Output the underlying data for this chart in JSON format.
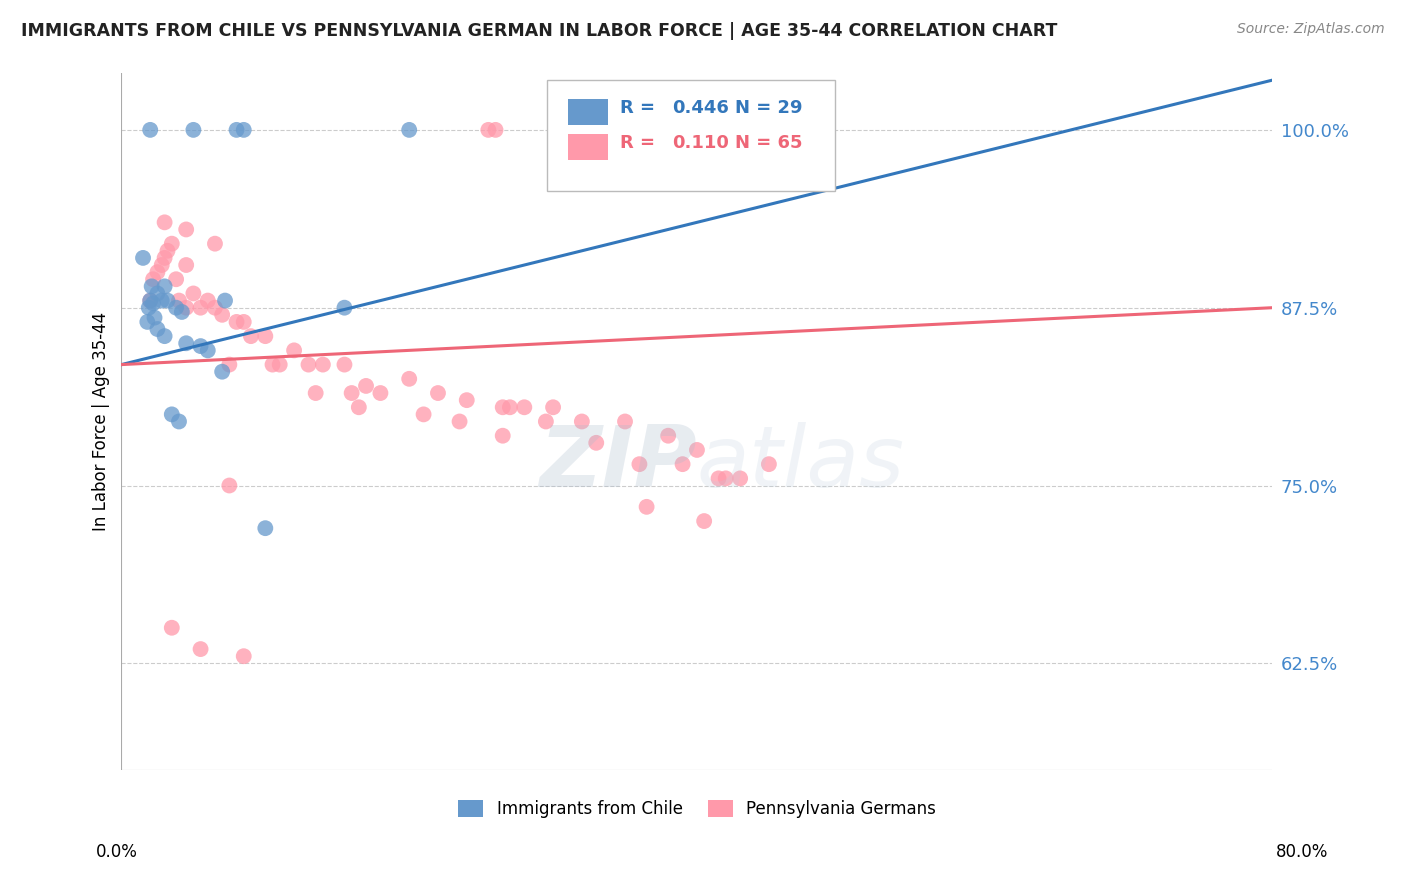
{
  "title": "IMMIGRANTS FROM CHILE VS PENNSYLVANIA GERMAN IN LABOR FORCE | AGE 35-44 CORRELATION CHART",
  "source": "Source: ZipAtlas.com",
  "ylabel": "In Labor Force | Age 35-44",
  "yticks": [
    62.5,
    75.0,
    87.5,
    100.0
  ],
  "ytick_labels": [
    "62.5%",
    "75.0%",
    "87.5%",
    "100.0%"
  ],
  "xlim": [
    0.0,
    80.0
  ],
  "ylim": [
    55.0,
    104.0
  ],
  "blue_color": "#6699CC",
  "pink_color": "#FF99AA",
  "blue_line_color": "#3377BB",
  "pink_line_color": "#EE6677",
  "legend_R_blue": "0.446",
  "legend_N_blue": "29",
  "legend_R_pink": "0.110",
  "legend_N_pink": "65",
  "blue_line_x0": 0.0,
  "blue_line_y0": 83.5,
  "blue_line_x1": 80.0,
  "blue_line_y1": 103.5,
  "pink_line_x0": 0.0,
  "pink_line_y0": 83.5,
  "pink_line_x1": 80.0,
  "pink_line_y1": 87.5,
  "blue_scatter_x": [
    1.5,
    1.8,
    1.9,
    2.0,
    2.0,
    2.1,
    2.2,
    2.3,
    2.5,
    2.5,
    2.8,
    3.0,
    3.0,
    3.2,
    3.5,
    3.8,
    4.0,
    4.2,
    4.5,
    5.0,
    5.5,
    6.0,
    7.0,
    7.2,
    8.0,
    8.5,
    10.0,
    15.5,
    20.0
  ],
  "blue_scatter_y": [
    91.0,
    86.5,
    87.5,
    100.0,
    88.0,
    89.0,
    87.8,
    86.8,
    88.5,
    86.0,
    88.0,
    89.0,
    85.5,
    88.0,
    80.0,
    87.5,
    79.5,
    87.2,
    85.0,
    100.0,
    84.8,
    84.5,
    83.0,
    88.0,
    100.0,
    100.0,
    72.0,
    87.5,
    100.0
  ],
  "pink_scatter_x": [
    2.0,
    2.2,
    2.5,
    2.8,
    3.0,
    3.2,
    3.5,
    3.8,
    4.0,
    4.5,
    4.5,
    5.0,
    5.5,
    6.0,
    6.5,
    7.0,
    7.5,
    8.0,
    8.5,
    9.0,
    10.0,
    10.5,
    11.0,
    12.0,
    13.0,
    13.5,
    14.0,
    15.5,
    16.0,
    16.5,
    17.0,
    18.0,
    20.0,
    21.0,
    22.0,
    23.5,
    24.0,
    25.5,
    26.0,
    26.5,
    27.0,
    28.0,
    29.5,
    30.0,
    32.0,
    33.0,
    35.0,
    36.0,
    38.0,
    39.0,
    40.0,
    41.5,
    42.0,
    43.0,
    45.0,
    3.0,
    4.5,
    6.5,
    7.5,
    26.5,
    36.5,
    40.5,
    3.5,
    5.5,
    8.5
  ],
  "pink_scatter_y": [
    88.0,
    89.5,
    90.0,
    90.5,
    91.0,
    91.5,
    92.0,
    89.5,
    88.0,
    87.5,
    90.5,
    88.5,
    87.5,
    88.0,
    87.5,
    87.0,
    83.5,
    86.5,
    86.5,
    85.5,
    85.5,
    83.5,
    83.5,
    84.5,
    83.5,
    81.5,
    83.5,
    83.5,
    81.5,
    80.5,
    82.0,
    81.5,
    82.5,
    80.0,
    81.5,
    79.5,
    81.0,
    100.0,
    100.0,
    80.5,
    80.5,
    80.5,
    79.5,
    80.5,
    79.5,
    78.0,
    79.5,
    76.5,
    78.5,
    76.5,
    77.5,
    75.5,
    75.5,
    75.5,
    76.5,
    93.5,
    93.0,
    92.0,
    75.0,
    78.5,
    73.5,
    72.5,
    65.0,
    63.5,
    63.0
  ]
}
